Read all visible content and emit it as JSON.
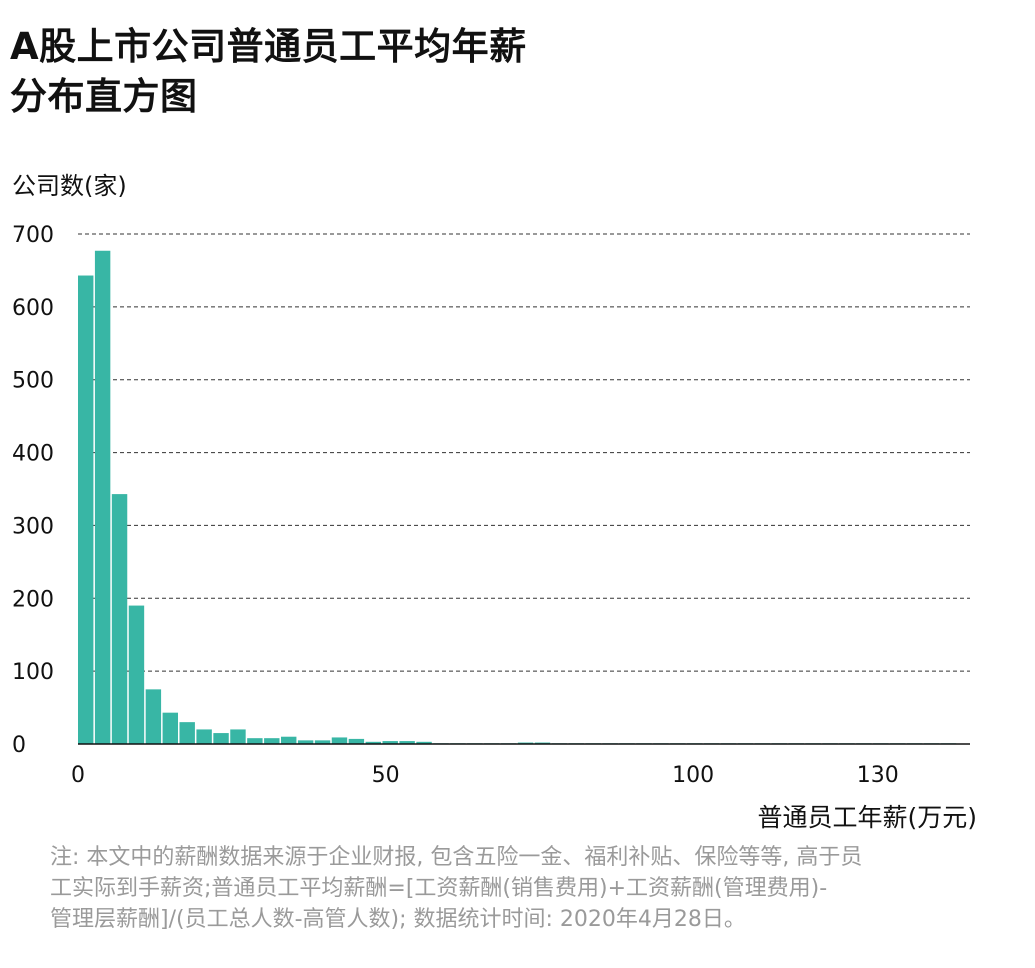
{
  "title": {
    "line1": "A股上市公司普通员工平均年薪",
    "line2": "分布直方图"
  },
  "note": {
    "line1": "注: 本文中的薪酬数据来源于企业财报, 包含五险一金、福利补贴、保险等等, 高于员",
    "line2": "工实际到手薪资;普通员工平均薪酬=[工资薪酬(销售费用)+工资薪酬(管理费用)-",
    "line3": "管理层薪酬]/(员工总人数-高管人数); 数据统计时间: 2020年4月28日。"
  },
  "colors": {
    "bar": "#38b6a5",
    "grid": "#333333",
    "axis": "#111111",
    "note": "#9a9a9a"
  },
  "chart_data": {
    "type": "bar",
    "xlabel": "普通员工年薪(万元)",
    "ylabel": "公司数(家)",
    "ylim": [
      0,
      700
    ],
    "xlim": [
      0,
      145
    ],
    "x_ticks": [
      0,
      50,
      100,
      130
    ],
    "y_ticks": [
      0,
      100,
      200,
      300,
      400,
      500,
      600,
      700
    ],
    "grid": "horizontal dashed",
    "bin_width": 2.75,
    "bins_start": 0,
    "values": [
      643,
      677,
      343,
      190,
      75,
      43,
      30,
      20,
      15,
      20,
      8,
      8,
      10,
      5,
      5,
      9,
      7,
      3,
      4,
      4,
      3,
      1,
      1,
      1,
      1,
      1,
      2,
      2,
      1,
      1,
      1,
      1,
      1,
      1,
      1,
      1,
      1,
      1,
      1,
      1,
      1,
      1,
      1,
      1,
      1,
      1,
      1,
      1,
      1,
      1,
      1,
      1
    ]
  }
}
